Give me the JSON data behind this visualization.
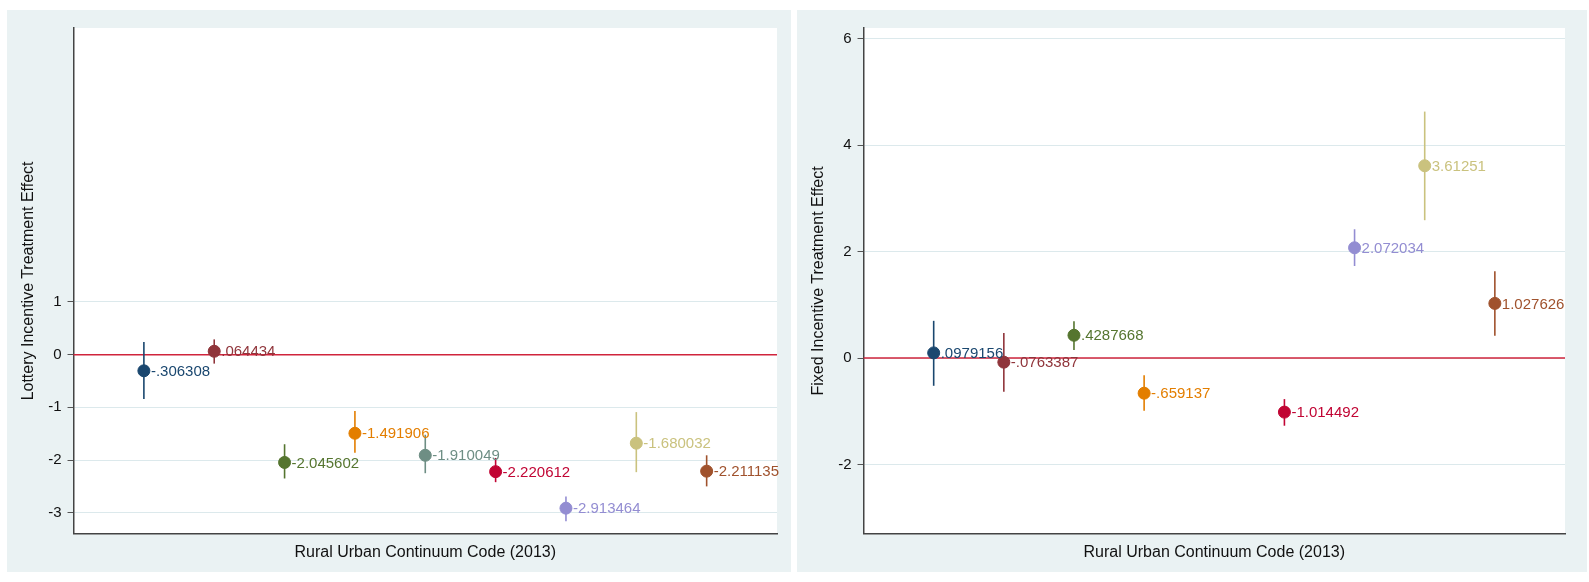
{
  "chart_data": [
    {
      "type": "scatter",
      "ylabel": "Lottery Incentive Treatment Effect",
      "xlabel": "Rural Urban Continuum Code (2013)",
      "categories": [
        null,
        null,
        null,
        null,
        null,
        null,
        null,
        null,
        null
      ],
      "ylim": [
        -3.4,
        6.2
      ],
      "yticks": [
        -3,
        -2,
        -1,
        0,
        1
      ],
      "grid": "y",
      "tick_labels": "y",
      "marker": "circle",
      "legend": false,
      "values": [
        -0.306308,
        0.064434,
        -2.045602,
        -1.491906,
        -1.910049,
        -2.220612,
        -2.913464,
        -1.680032,
        -2.211135
      ],
      "colors": [
        "#1a476f",
        "#90353b",
        "#55752f",
        "#e37e00",
        "#6e8e84",
        "#c10534",
        "#938dd2",
        "#cac27e",
        "#a0522d"
      ],
      "errors": [
        [
          -0.84,
          0.24
        ],
        [
          -0.17,
          0.29
        ],
        [
          -2.35,
          -1.7
        ],
        [
          -1.86,
          -1.07
        ],
        [
          -2.25,
          -1.52
        ],
        [
          -2.42,
          -1.96
        ],
        [
          -3.16,
          -2.69
        ],
        [
          -2.23,
          -1.09
        ],
        [
          -2.5,
          -1.91
        ]
      ],
      "value_labels": [
        "-.306308",
        ".064434",
        "-2.045602",
        "-1.491906",
        "-1.910049",
        "-2.220612",
        "-2.913464",
        "-1.680032",
        "-2.211135"
      ],
      "ref_lines": [
        {
          "axis": "y",
          "value": 0,
          "color": "#d0243c"
        }
      ]
    },
    {
      "type": "scatter",
      "ylabel": "Fixed Incentive Treatment Effect",
      "xlabel": "Rural Urban Continuum Code (2013)",
      "categories": [
        null,
        null,
        null,
        null,
        null,
        null,
        null,
        null,
        null
      ],
      "ylim": [
        -3.3,
        6.2
      ],
      "yticks": [
        -2,
        0,
        2,
        4,
        6
      ],
      "grid": "y",
      "tick_labels": "y",
      "marker": "circle",
      "legend": false,
      "values": [
        0.0979156,
        -0.0763387,
        0.4287668,
        -0.659137,
        null,
        -1.014492,
        2.072034,
        3.61251,
        1.027626
      ],
      "colors": [
        "#1a476f",
        "#90353b",
        "#55752f",
        "#e37e00",
        "#6e8e84",
        "#c10534",
        "#938dd2",
        "#cac27e",
        "#a0522d"
      ],
      "errors": [
        [
          -0.52,
          0.7
        ],
        [
          -0.63,
          0.47
        ],
        [
          0.15,
          0.69
        ],
        [
          -0.99,
          -0.32
        ],
        null,
        [
          -1.27,
          -0.77
        ],
        [
          1.73,
          2.42
        ],
        [
          2.59,
          4.63
        ],
        [
          0.42,
          1.63
        ]
      ],
      "value_labels": [
        ".0979156",
        "-.0763387",
        ".4287668",
        "-.659137",
        null,
        "-1.014492",
        "2.072034",
        "3.61251",
        "1.027626"
      ],
      "ref_lines": [
        {
          "axis": "y",
          "value": 0,
          "color": "#d0243c"
        }
      ]
    }
  ]
}
